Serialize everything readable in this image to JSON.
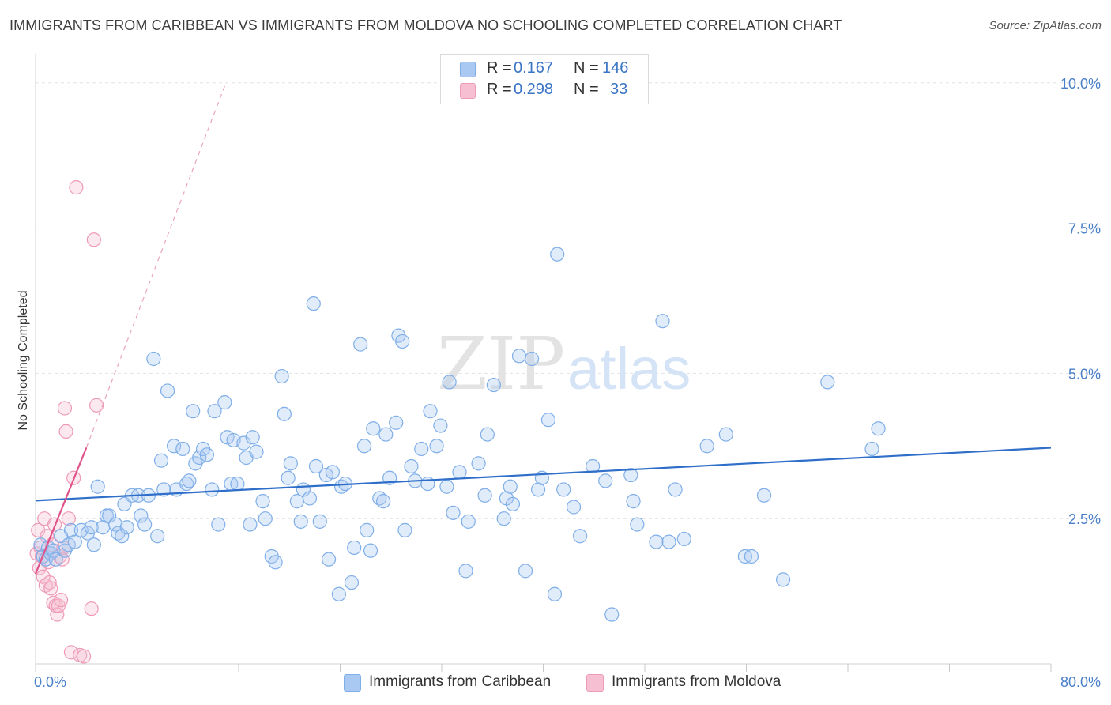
{
  "title": "IMMIGRANTS FROM CARIBBEAN VS IMMIGRANTS FROM MOLDOVA NO SCHOOLING COMPLETED CORRELATION CHART",
  "source": "Source: ZipAtlas.com",
  "watermark": {
    "zip": "ZIP",
    "atlas": "atlas"
  },
  "legend": {
    "rows": [
      {
        "r_label": "R =",
        "r_value": "0.167",
        "n_label": "N =",
        "n_value": "146",
        "color": "#a9c8f2",
        "border": "#7faee8"
      },
      {
        "r_label": "R =",
        "r_value": "0.298",
        "n_label": "N =",
        "n_value": "33",
        "color": "#f7c0d2",
        "border": "#ee9ab6"
      }
    ]
  },
  "bottom_legend": [
    {
      "label": "Immigrants from Caribbean",
      "color": "#a9c8f2",
      "border": "#7faee8"
    },
    {
      "label": "Immigrants from Moldova",
      "color": "#f7c0d2",
      "border": "#ee9ab6"
    }
  ],
  "chart_data": {
    "type": "scatter",
    "title": "IMMIGRANTS FROM CARIBBEAN VS IMMIGRANTS FROM MOLDOVA NO SCHOOLING COMPLETED CORRELATION CHART",
    "ylabel": "No Schooling Completed",
    "xlabel": "",
    "xlim": [
      0,
      80
    ],
    "ylim": [
      0,
      10.5
    ],
    "x_tick_labels": [
      {
        "value": 0,
        "label": "0.0%"
      },
      {
        "value": 80,
        "label": "80.0%"
      }
    ],
    "y_tick_labels": [
      {
        "value": 2.5,
        "label": "2.5%"
      },
      {
        "value": 5.0,
        "label": "5.0%"
      },
      {
        "value": 7.5,
        "label": "7.5%"
      },
      {
        "value": 10.0,
        "label": "10.0%"
      }
    ],
    "grid": true,
    "series": [
      {
        "name": "Immigrants from Caribbean",
        "color": "#7faee8",
        "trend": {
          "x": [
            0,
            80
          ],
          "y": [
            2.81,
            3.72
          ],
          "color": "#2f6fca"
        },
        "points": [
          [
            0.4,
            2.05
          ],
          [
            0.6,
            1.85
          ],
          [
            0.8,
            1.8
          ],
          [
            1.0,
            2.0
          ],
          [
            1.2,
            1.9
          ],
          [
            1.4,
            1.95
          ],
          [
            1.6,
            1.8
          ],
          [
            2.0,
            2.2
          ],
          [
            2.3,
            1.95
          ],
          [
            2.6,
            2.05
          ],
          [
            2.8,
            2.3
          ],
          [
            3.1,
            2.1
          ],
          [
            3.6,
            2.3
          ],
          [
            4.1,
            2.25
          ],
          [
            4.4,
            2.35
          ],
          [
            4.6,
            2.05
          ],
          [
            4.9,
            3.05
          ],
          [
            5.3,
            2.35
          ],
          [
            5.6,
            2.55
          ],
          [
            5.8,
            2.55
          ],
          [
            6.3,
            2.4
          ],
          [
            6.5,
            2.25
          ],
          [
            6.8,
            2.2
          ],
          [
            7.0,
            2.75
          ],
          [
            7.2,
            2.35
          ],
          [
            7.6,
            2.9
          ],
          [
            8.1,
            2.9
          ],
          [
            8.3,
            2.55
          ],
          [
            8.6,
            2.4
          ],
          [
            8.9,
            2.9
          ],
          [
            9.3,
            5.25
          ],
          [
            9.6,
            2.2
          ],
          [
            9.9,
            3.5
          ],
          [
            10.1,
            3.0
          ],
          [
            10.4,
            4.7
          ],
          [
            10.9,
            3.75
          ],
          [
            11.1,
            3.0
          ],
          [
            11.6,
            3.7
          ],
          [
            11.9,
            3.1
          ],
          [
            12.1,
            3.15
          ],
          [
            12.4,
            4.35
          ],
          [
            12.6,
            3.45
          ],
          [
            12.9,
            3.55
          ],
          [
            13.2,
            3.7
          ],
          [
            13.5,
            3.6
          ],
          [
            13.9,
            3.0
          ],
          [
            14.1,
            4.35
          ],
          [
            14.4,
            2.4
          ],
          [
            14.9,
            4.5
          ],
          [
            15.1,
            3.9
          ],
          [
            15.4,
            3.1
          ],
          [
            15.6,
            3.85
          ],
          [
            15.9,
            3.1
          ],
          [
            16.4,
            3.8
          ],
          [
            16.6,
            3.55
          ],
          [
            16.9,
            2.4
          ],
          [
            17.1,
            3.9
          ],
          [
            17.4,
            3.65
          ],
          [
            17.9,
            2.8
          ],
          [
            18.1,
            2.5
          ],
          [
            18.6,
            1.85
          ],
          [
            18.9,
            1.75
          ],
          [
            19.4,
            4.95
          ],
          [
            19.6,
            4.3
          ],
          [
            19.9,
            3.2
          ],
          [
            20.1,
            3.45
          ],
          [
            20.6,
            2.8
          ],
          [
            20.9,
            2.45
          ],
          [
            21.1,
            3.0
          ],
          [
            21.6,
            2.85
          ],
          [
            21.9,
            6.2
          ],
          [
            22.1,
            3.4
          ],
          [
            22.4,
            2.45
          ],
          [
            22.9,
            3.25
          ],
          [
            23.1,
            1.8
          ],
          [
            23.4,
            3.3
          ],
          [
            23.9,
            1.2
          ],
          [
            24.1,
            3.05
          ],
          [
            24.4,
            3.1
          ],
          [
            24.9,
            1.4
          ],
          [
            25.1,
            2.0
          ],
          [
            25.6,
            5.5
          ],
          [
            25.9,
            3.75
          ],
          [
            26.1,
            2.3
          ],
          [
            26.4,
            1.95
          ],
          [
            26.6,
            4.05
          ],
          [
            27.1,
            2.85
          ],
          [
            27.4,
            2.8
          ],
          [
            27.6,
            3.95
          ],
          [
            27.9,
            3.2
          ],
          [
            28.4,
            4.15
          ],
          [
            28.6,
            5.65
          ],
          [
            28.9,
            5.55
          ],
          [
            29.1,
            2.3
          ],
          [
            29.6,
            3.4
          ],
          [
            29.9,
            3.15
          ],
          [
            30.4,
            3.7
          ],
          [
            30.9,
            3.1
          ],
          [
            31.1,
            4.35
          ],
          [
            31.6,
            3.75
          ],
          [
            31.9,
            4.1
          ],
          [
            32.4,
            3.05
          ],
          [
            32.6,
            4.85
          ],
          [
            32.9,
            2.6
          ],
          [
            33.4,
            3.3
          ],
          [
            33.9,
            1.6
          ],
          [
            34.1,
            2.45
          ],
          [
            34.9,
            3.45
          ],
          [
            35.4,
            2.9
          ],
          [
            35.6,
            3.95
          ],
          [
            36.1,
            4.8
          ],
          [
            36.9,
            2.5
          ],
          [
            37.1,
            2.85
          ],
          [
            37.4,
            3.05
          ],
          [
            37.6,
            2.75
          ],
          [
            38.1,
            5.3
          ],
          [
            38.6,
            1.6
          ],
          [
            39.1,
            5.25
          ],
          [
            39.6,
            3.0
          ],
          [
            39.9,
            3.2
          ],
          [
            40.4,
            4.2
          ],
          [
            40.9,
            1.2
          ],
          [
            41.1,
            7.05
          ],
          [
            41.6,
            3.0
          ],
          [
            42.4,
            2.7
          ],
          [
            42.9,
            2.2
          ],
          [
            43.9,
            3.4
          ],
          [
            44.9,
            3.15
          ],
          [
            45.4,
            0.85
          ],
          [
            46.9,
            3.25
          ],
          [
            47.1,
            2.8
          ],
          [
            47.4,
            2.4
          ],
          [
            48.9,
            2.1
          ],
          [
            49.4,
            5.9
          ],
          [
            49.9,
            2.1
          ],
          [
            50.4,
            3.0
          ],
          [
            51.1,
            2.15
          ],
          [
            52.9,
            3.75
          ],
          [
            54.4,
            3.95
          ],
          [
            55.9,
            1.85
          ],
          [
            56.4,
            1.85
          ],
          [
            57.4,
            2.9
          ],
          [
            58.9,
            1.45
          ],
          [
            62.4,
            4.85
          ],
          [
            65.9,
            3.7
          ],
          [
            66.4,
            4.05
          ]
        ]
      },
      {
        "name": "Immigrants from Moldova",
        "color": "#ee9ab6",
        "trend": {
          "x": [
            0,
            4.0
          ],
          "y": [
            1.55,
            3.72
          ],
          "color": "#e0528a",
          "dashed_extension": {
            "x": [
              4.0,
              15.0
            ],
            "y": [
              3.72,
              10.0
            ]
          }
        },
        "points": [
          [
            0.1,
            1.9
          ],
          [
            0.2,
            2.3
          ],
          [
            0.3,
            1.65
          ],
          [
            0.4,
            2.0
          ],
          [
            0.5,
            1.85
          ],
          [
            0.6,
            1.5
          ],
          [
            0.7,
            2.5
          ],
          [
            0.8,
            1.35
          ],
          [
            0.9,
            2.2
          ],
          [
            1.0,
            1.75
          ],
          [
            1.1,
            1.4
          ],
          [
            1.2,
            1.3
          ],
          [
            1.3,
            2.05
          ],
          [
            1.4,
            1.05
          ],
          [
            1.5,
            2.4
          ],
          [
            1.6,
            1.0
          ],
          [
            1.7,
            0.85
          ],
          [
            1.8,
            1.0
          ],
          [
            1.9,
            1.85
          ],
          [
            2.0,
            1.1
          ],
          [
            2.1,
            1.8
          ],
          [
            2.2,
            2.0
          ],
          [
            2.3,
            4.4
          ],
          [
            2.4,
            4.0
          ],
          [
            2.6,
            2.5
          ],
          [
            2.8,
            0.2
          ],
          [
            3.0,
            3.2
          ],
          [
            3.2,
            8.2
          ],
          [
            3.5,
            0.15
          ],
          [
            3.8,
            0.13
          ],
          [
            4.4,
            0.95
          ],
          [
            4.6,
            7.3
          ],
          [
            4.8,
            4.45
          ]
        ]
      }
    ]
  }
}
